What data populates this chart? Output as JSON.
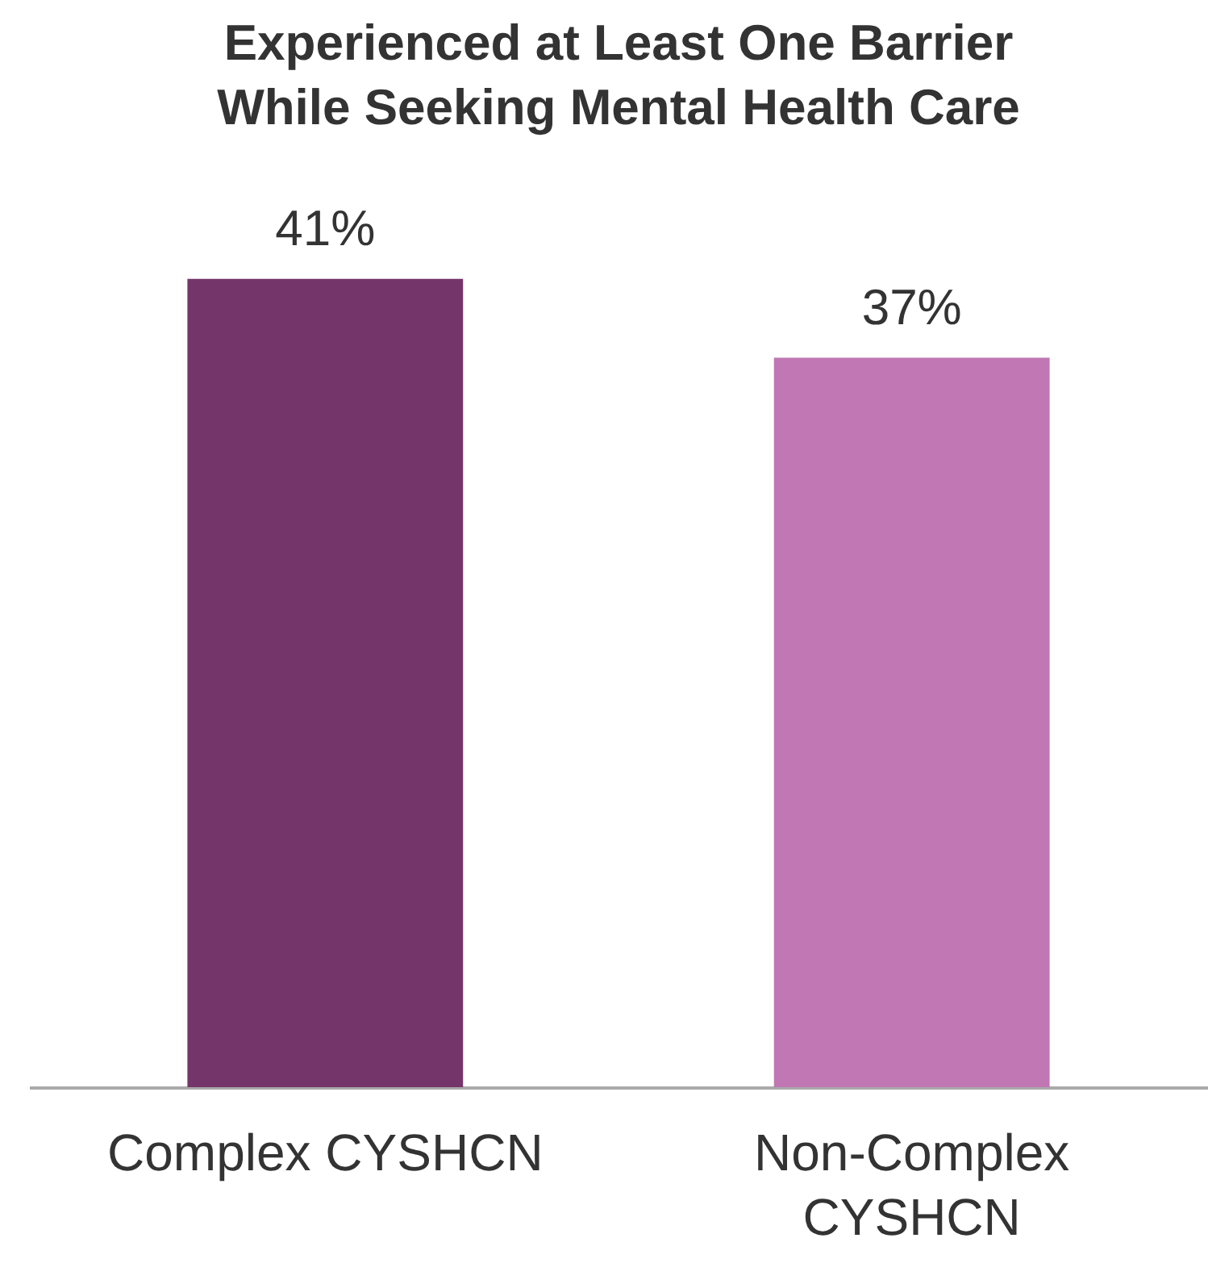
{
  "chart_data": {
    "type": "bar",
    "title": "Experienced at Least One Barrier While Seeking Mental Health Care",
    "categories": [
      "Complex CYSHCN",
      "Non-Complex CYSHCN"
    ],
    "values": [
      41,
      37
    ],
    "colors": [
      "#74366a",
      "#c077b3"
    ],
    "value_labels": [
      "41%",
      "37%"
    ],
    "tick_labels": "x",
    "legend": false
  }
}
